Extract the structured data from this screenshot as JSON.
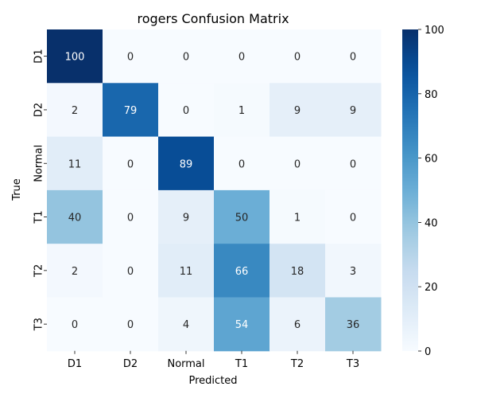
{
  "chart_data": {
    "type": "heatmap",
    "title": "rogers Confusion Matrix",
    "xlabel": "Predicted",
    "ylabel": "True",
    "x_categories": [
      "D1",
      "D2",
      "Normal",
      "T1",
      "T2",
      "T3"
    ],
    "y_categories": [
      "D1",
      "D2",
      "Normal",
      "T1",
      "T2",
      "T3"
    ],
    "values": [
      [
        100,
        0,
        0,
        0,
        0,
        0
      ],
      [
        2,
        79,
        0,
        1,
        9,
        9
      ],
      [
        11,
        0,
        89,
        0,
        0,
        0
      ],
      [
        40,
        0,
        9,
        50,
        1,
        0
      ],
      [
        2,
        0,
        11,
        66,
        18,
        3
      ],
      [
        0,
        0,
        4,
        54,
        6,
        36
      ]
    ],
    "colorbar": {
      "range": [
        0,
        100
      ],
      "ticks": [
        "0",
        "20",
        "40",
        "60",
        "80",
        "100"
      ]
    },
    "colormap": "Blues",
    "colors": {
      "low": "#f7fbff",
      "high": "#08306b",
      "text_dark": "#262626",
      "text_light": "#ffffff"
    }
  }
}
